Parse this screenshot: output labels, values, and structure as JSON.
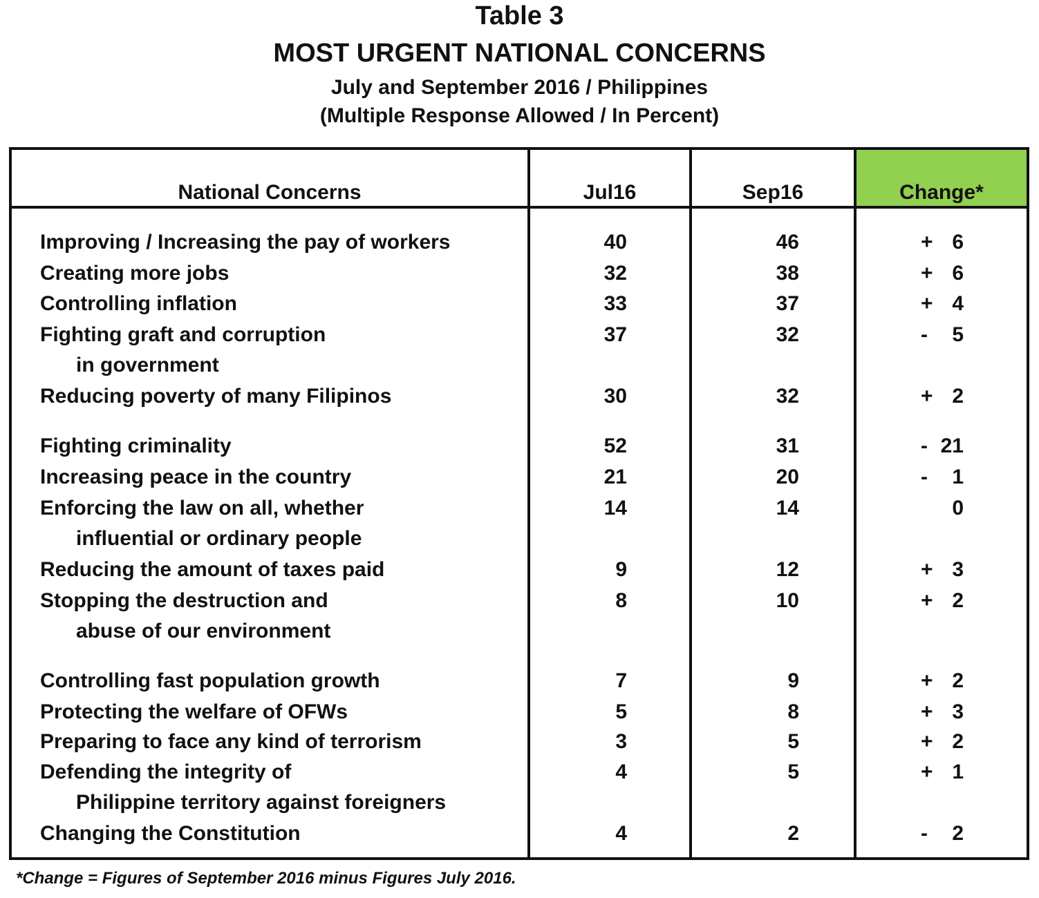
{
  "title": "Table 3",
  "subtitle": "MOST URGENT NATIONAL CONCERNS",
  "period": "July and September 2016 / Philippines",
  "note": "(Multiple Response Allowed / In Percent)",
  "headers": {
    "concerns": "National Concerns",
    "jul": "Jul16",
    "sep": "Sep16",
    "change": "Change*"
  },
  "colors": {
    "change_header_bg": "#92d050"
  },
  "rows": [
    {
      "label": "Improving / Increasing the pay of workers",
      "label2": "",
      "jul": "40",
      "sep": "46",
      "sign": "+",
      "change": "6"
    },
    {
      "label": "Creating more jobs",
      "label2": "",
      "jul": "32",
      "sep": "38",
      "sign": "+",
      "change": "6"
    },
    {
      "label": "Controlling inflation",
      "label2": "",
      "jul": "33",
      "sep": "37",
      "sign": "+",
      "change": "4"
    },
    {
      "label": "Fighting graft and corruption",
      "label2": "in government",
      "jul": "37",
      "sep": "32",
      "sign": "-",
      "change": "5"
    },
    {
      "label": "Reducing poverty of many Filipinos",
      "label2": "",
      "jul": "30",
      "sep": "32",
      "sign": "+",
      "change": "2"
    },
    {
      "label": "Fighting criminality",
      "label2": "",
      "jul": "52",
      "sep": "31",
      "sign": "-",
      "change": "21"
    },
    {
      "label": "Increasing peace in the country",
      "label2": "",
      "jul": "21",
      "sep": "20",
      "sign": "-",
      "change": "1"
    },
    {
      "label": "Enforcing the law on all, whether",
      "label2": "influential or ordinary people",
      "jul": "14",
      "sep": "14",
      "sign": "",
      "change": "0"
    },
    {
      "label": "Reducing the amount of taxes paid",
      "label2": "",
      "jul": "9",
      "sep": "12",
      "sign": "+",
      "change": "3"
    },
    {
      "label": "Stopping the destruction and",
      "label2": "abuse of our environment",
      "jul": "8",
      "sep": "10",
      "sign": "+",
      "change": "2"
    },
    {
      "label": "Controlling fast population growth",
      "label2": "",
      "jul": "7",
      "sep": "9",
      "sign": "+",
      "change": "2"
    },
    {
      "label": "Protecting the welfare of OFWs",
      "label2": "",
      "jul": "5",
      "sep": "8",
      "sign": "+",
      "change": "3"
    },
    {
      "label": "Preparing to face any kind of terrorism",
      "label2": "",
      "jul": "3",
      "sep": "5",
      "sign": "+",
      "change": "2"
    },
    {
      "label": "Defending the integrity of",
      "label2": "Philippine territory against foreigners",
      "jul": "4",
      "sep": "5",
      "sign": "+",
      "change": "1"
    },
    {
      "label": "Changing the Constitution",
      "label2": "",
      "jul": "4",
      "sep": "2",
      "sign": "-",
      "change": "2"
    }
  ],
  "footnote": "*Change = Figures of September 2016 minus Figures July 2016."
}
